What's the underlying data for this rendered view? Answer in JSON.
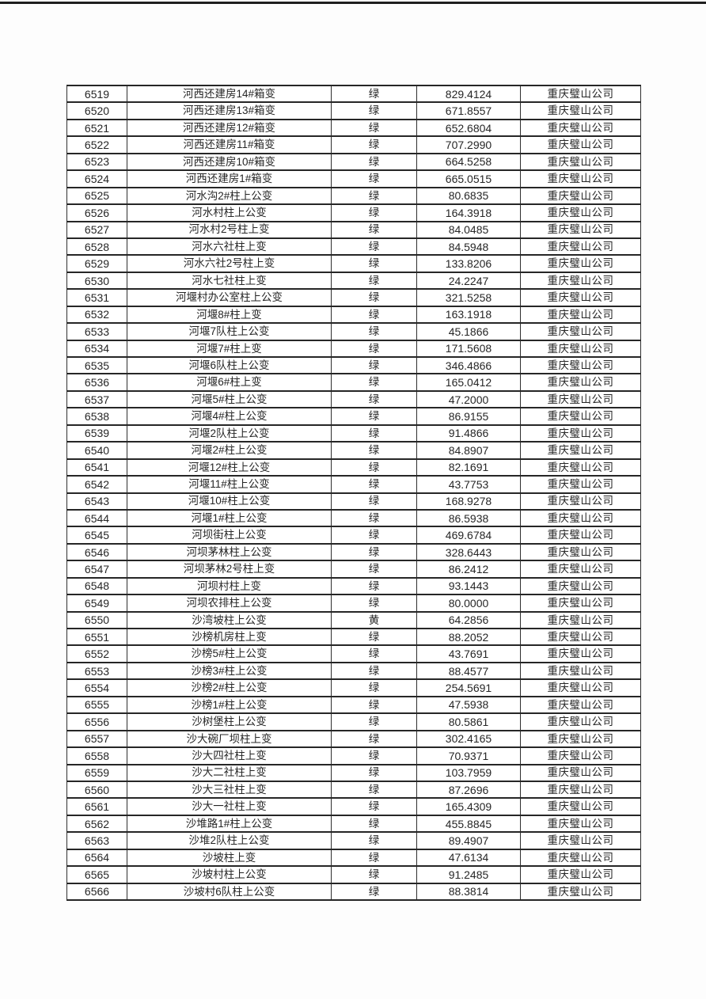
{
  "page": {
    "background_color": "#fdfdfd",
    "top_rule_color": "#1f1f1f",
    "border_color": "#262626",
    "text_color": "#262626"
  },
  "table": {
    "rows": [
      [
        "6519",
        "河西还建房14#箱变",
        "绿",
        "829.4124",
        "重庆璧山公司"
      ],
      [
        "6520",
        "河西还建房13#箱变",
        "绿",
        "671.8557",
        "重庆璧山公司"
      ],
      [
        "6521",
        "河西还建房12#箱变",
        "绿",
        "652.6804",
        "重庆璧山公司"
      ],
      [
        "6522",
        "河西还建房11#箱变",
        "绿",
        "707.2990",
        "重庆璧山公司"
      ],
      [
        "6523",
        "河西还建房10#箱变",
        "绿",
        "664.5258",
        "重庆璧山公司"
      ],
      [
        "6524",
        "河西还建房1#箱变",
        "绿",
        "665.0515",
        "重庆璧山公司"
      ],
      [
        "6525",
        "河水沟2#柱上公变",
        "绿",
        "80.6835",
        "重庆璧山公司"
      ],
      [
        "6526",
        "河水村柱上公变",
        "绿",
        "164.3918",
        "重庆璧山公司"
      ],
      [
        "6527",
        "河水村2号柱上变",
        "绿",
        "84.0485",
        "重庆璧山公司"
      ],
      [
        "6528",
        "河水六社柱上变",
        "绿",
        "84.5948",
        "重庆璧山公司"
      ],
      [
        "6529",
        "河水六社2号柱上变",
        "绿",
        "133.8206",
        "重庆璧山公司"
      ],
      [
        "6530",
        "河水七社柱上变",
        "绿",
        "24.2247",
        "重庆璧山公司"
      ],
      [
        "6531",
        "河堰村办公室柱上公变",
        "绿",
        "321.5258",
        "重庆璧山公司"
      ],
      [
        "6532",
        "河堰8#柱上变",
        "绿",
        "163.1918",
        "重庆璧山公司"
      ],
      [
        "6533",
        "河堰7队柱上公变",
        "绿",
        "45.1866",
        "重庆璧山公司"
      ],
      [
        "6534",
        "河堰7#柱上变",
        "绿",
        "171.5608",
        "重庆璧山公司"
      ],
      [
        "6535",
        "河堰6队柱上公变",
        "绿",
        "346.4866",
        "重庆璧山公司"
      ],
      [
        "6536",
        "河堰6#柱上变",
        "绿",
        "165.0412",
        "重庆璧山公司"
      ],
      [
        "6537",
        "河堰5#柱上公变",
        "绿",
        "47.2000",
        "重庆璧山公司"
      ],
      [
        "6538",
        "河堰4#柱上公变",
        "绿",
        "86.9155",
        "重庆璧山公司"
      ],
      [
        "6539",
        "河堰2队柱上公变",
        "绿",
        "91.4866",
        "重庆璧山公司"
      ],
      [
        "6540",
        "河堰2#柱上公变",
        "绿",
        "84.8907",
        "重庆璧山公司"
      ],
      [
        "6541",
        "河堰12#柱上公变",
        "绿",
        "82.1691",
        "重庆璧山公司"
      ],
      [
        "6542",
        "河堰11#柱上公变",
        "绿",
        "43.7753",
        "重庆璧山公司"
      ],
      [
        "6543",
        "河堰10#柱上公变",
        "绿",
        "168.9278",
        "重庆璧山公司"
      ],
      [
        "6544",
        "河堰1#柱上公变",
        "绿",
        "86.5938",
        "重庆璧山公司"
      ],
      [
        "6545",
        "河坝街柱上公变",
        "绿",
        "469.6784",
        "重庆璧山公司"
      ],
      [
        "6546",
        "河坝茅林柱上公变",
        "绿",
        "328.6443",
        "重庆璧山公司"
      ],
      [
        "6547",
        "河坝茅林2号柱上变",
        "绿",
        "86.2412",
        "重庆璧山公司"
      ],
      [
        "6548",
        "河坝村柱上变",
        "绿",
        "93.1443",
        "重庆璧山公司"
      ],
      [
        "6549",
        "河坝农排柱上公变",
        "绿",
        "80.0000",
        "重庆璧山公司"
      ],
      [
        "6550",
        "沙湾坡柱上公变",
        "黄",
        "64.2856",
        "重庆璧山公司"
      ],
      [
        "6551",
        "沙榜机房柱上变",
        "绿",
        "88.2052",
        "重庆璧山公司"
      ],
      [
        "6552",
        "沙榜5#柱上公变",
        "绿",
        "43.7691",
        "重庆璧山公司"
      ],
      [
        "6553",
        "沙榜3#柱上公变",
        "绿",
        "88.4577",
        "重庆璧山公司"
      ],
      [
        "6554",
        "沙榜2#柱上公变",
        "绿",
        "254.5691",
        "重庆璧山公司"
      ],
      [
        "6555",
        "沙榜1#柱上公变",
        "绿",
        "47.5938",
        "重庆璧山公司"
      ],
      [
        "6556",
        "沙树堡柱上公变",
        "绿",
        "80.5861",
        "重庆璧山公司"
      ],
      [
        "6557",
        "沙大碗厂坝柱上变",
        "绿",
        "302.4165",
        "重庆璧山公司"
      ],
      [
        "6558",
        "沙大四社柱上变",
        "绿",
        "70.9371",
        "重庆璧山公司"
      ],
      [
        "6559",
        "沙大二社柱上变",
        "绿",
        "103.7959",
        "重庆璧山公司"
      ],
      [
        "6560",
        "沙大三社柱上变",
        "绿",
        "87.2696",
        "重庆璧山公司"
      ],
      [
        "6561",
        "沙大一社柱上变",
        "绿",
        "165.4309",
        "重庆璧山公司"
      ],
      [
        "6562",
        "沙堆路1#柱上公变",
        "绿",
        "455.8845",
        "重庆璧山公司"
      ],
      [
        "6563",
        "沙堆2队柱上公变",
        "绿",
        "89.4907",
        "重庆璧山公司"
      ],
      [
        "6564",
        "沙坡柱上变",
        "绿",
        "47.6134",
        "重庆璧山公司"
      ],
      [
        "6565",
        "沙坡村柱上公变",
        "绿",
        "91.2485",
        "重庆璧山公司"
      ],
      [
        "6566",
        "沙坡村6队柱上公变",
        "绿",
        "88.3814",
        "重庆璧山公司"
      ]
    ]
  }
}
